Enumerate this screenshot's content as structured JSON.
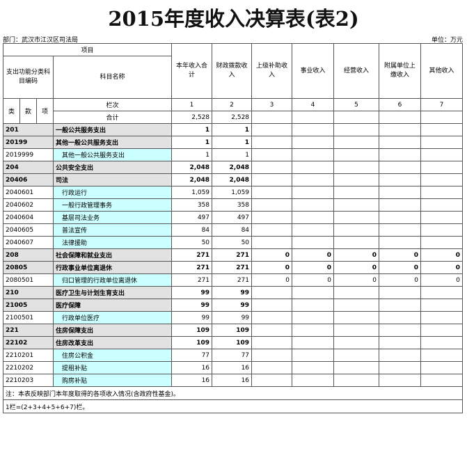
{
  "title": "2015年度收入决算表(表2)",
  "department": "部门：武汉市江汉区司法局",
  "unit": "单位：万元",
  "header": {
    "item": "项目",
    "code": "支出功能分类科目编码",
    "name": "科目名称",
    "columns": [
      "本年收入合计",
      "财政拨款收入",
      "上级补助收入",
      "事业收入",
      "经营收入",
      "附属单位上缴收入",
      "其他收入"
    ],
    "row_number_label": "栏次",
    "row_numbers": [
      "1",
      "2",
      "3",
      "4",
      "5",
      "6",
      "7"
    ],
    "code_levels": [
      "类",
      "款",
      "项"
    ],
    "total_label": "合计",
    "total_values": [
      "2,528",
      "2,528",
      null,
      null,
      null,
      null,
      null
    ]
  },
  "rows": [
    {
      "code": "201",
      "name": "一般公共服务支出",
      "values": [
        "1",
        "1",
        null,
        null,
        null,
        null,
        null
      ]
    },
    {
      "code": "20199",
      "name": "其他一般公共服务支出",
      "values": [
        "1",
        "1",
        null,
        null,
        null,
        null,
        null
      ]
    },
    {
      "code": "2019999",
      "name": "其他一般公共服务支出",
      "values": [
        "1",
        "1",
        null,
        null,
        null,
        null,
        null
      ]
    },
    {
      "code": "204",
      "name": "公共安全支出",
      "values": [
        "2,048",
        "2,048",
        null,
        null,
        null,
        null,
        null
      ]
    },
    {
      "code": "20406",
      "name": "司法",
      "values": [
        "2,048",
        "2,048",
        null,
        null,
        null,
        null,
        null
      ]
    },
    {
      "code": "2040601",
      "name": "行政运行",
      "values": [
        "1,059",
        "1,059",
        null,
        null,
        null,
        null,
        null
      ]
    },
    {
      "code": "2040602",
      "name": "一般行政管理事务",
      "values": [
        "358",
        "358",
        null,
        null,
        null,
        null,
        null
      ]
    },
    {
      "code": "2040604",
      "name": "基层司法业务",
      "values": [
        "497",
        "497",
        null,
        null,
        null,
        null,
        null
      ]
    },
    {
      "code": "2040605",
      "name": "普法宣传",
      "values": [
        "84",
        "84",
        null,
        null,
        null,
        null,
        null
      ]
    },
    {
      "code": "2040607",
      "name": "法律援助",
      "values": [
        "50",
        "50",
        null,
        null,
        null,
        null,
        null
      ]
    },
    {
      "code": "208",
      "name": "社会保障和就业支出",
      "values": [
        "271",
        "271",
        "0",
        "0",
        "0",
        "0",
        "0"
      ]
    },
    {
      "code": "20805",
      "name": "行政事业单位离退休",
      "values": [
        "271",
        "271",
        "0",
        "0",
        "0",
        "0",
        "0"
      ]
    },
    {
      "code": "2080501",
      "name": "归口管理的行政单位离退休",
      "values": [
        "271",
        "271",
        "0",
        "0",
        "0",
        "0",
        "0"
      ]
    },
    {
      "code": "210",
      "name": "医疗卫生与计划生育支出",
      "values": [
        "99",
        "99",
        null,
        null,
        null,
        null,
        null
      ]
    },
    {
      "code": "21005",
      "name": "医疗保障",
      "values": [
        "99",
        "99",
        null,
        null,
        null,
        null,
        null
      ]
    },
    {
      "code": "2100501",
      "name": "行政单位医疗",
      "values": [
        "99",
        "99",
        null,
        null,
        null,
        null,
        null
      ]
    },
    {
      "code": "221",
      "name": "住房保障支出",
      "values": [
        "109",
        "109",
        null,
        null,
        null,
        null,
        null
      ]
    },
    {
      "code": "22102",
      "name": "住房改革支出",
      "values": [
        "109",
        "109",
        null,
        null,
        null,
        null,
        null
      ]
    },
    {
      "code": "2210201",
      "name": "住房公积金",
      "values": [
        "77",
        "77",
        null,
        null,
        null,
        null,
        null
      ]
    },
    {
      "code": "2210202",
      "name": "提租补贴",
      "values": [
        "16",
        "16",
        null,
        null,
        null,
        null,
        null
      ]
    },
    {
      "code": "2210203",
      "name": "购房补贴",
      "values": [
        "16",
        "16",
        null,
        null,
        null,
        null,
        null
      ]
    }
  ],
  "notes": [
    "注：本表反映部门本年度取得的各项收入情况(含政府性基金)。",
    "1栏=(2+3+4+5+6+7)栏。"
  ]
}
